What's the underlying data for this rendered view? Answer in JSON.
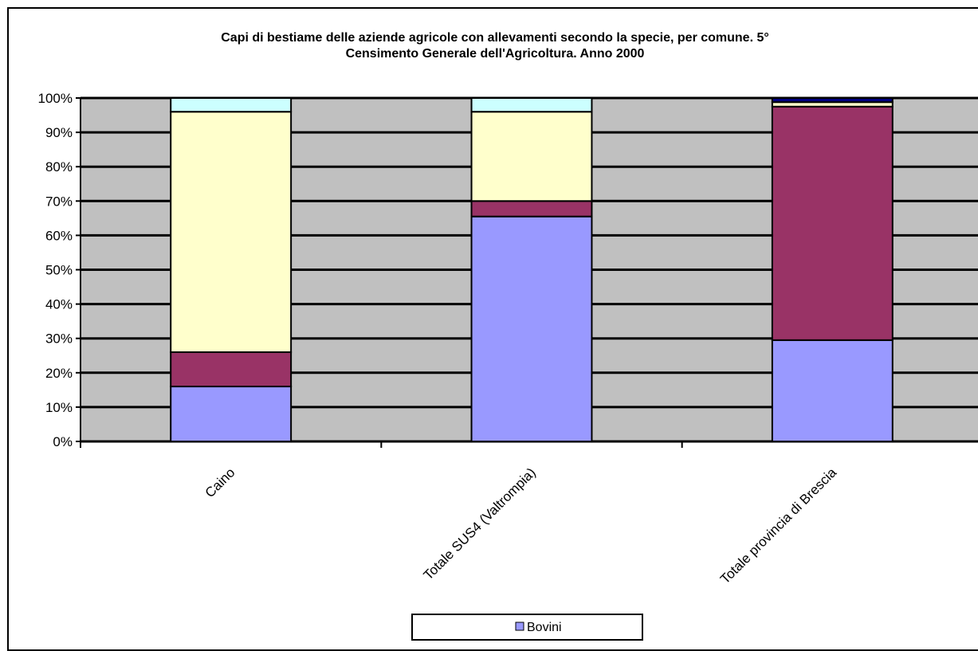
{
  "chart_data": {
    "type": "bar",
    "stacked": true,
    "percent": true,
    "title": "Capi di bestiame delle aziende agricole con allevamenti secondo la specie, per comune. 5° Censimento Generale dell'Agricoltura. Anno 2000",
    "title_lines": [
      "Capi di bestiame delle aziende agricole con allevamenti secondo la specie, per comune. 5°",
      "Censimento Generale dell'Agricoltura. Anno 2000"
    ],
    "categories": [
      "Caino",
      "Totale SUS4 (Valtrompia)",
      "Totale provincia di Brescia"
    ],
    "yticks": [
      "0%",
      "10%",
      "20%",
      "30%",
      "40%",
      "50%",
      "60%",
      "70%",
      "80%",
      "90%",
      "100%"
    ],
    "ylim": [
      0,
      100
    ],
    "grid": true,
    "plot_background": "#c0c0c0",
    "series": [
      {
        "name": "Bovini",
        "color": "#9999ff",
        "values": [
          16,
          65.5,
          29.5
        ]
      },
      {
        "color": "#993366",
        "values": [
          10,
          4.5,
          68
        ]
      },
      {
        "color": "#ffffcc",
        "values": [
          70,
          26,
          1.3
        ]
      },
      {
        "color": "#ccffff",
        "values": [
          4,
          4,
          0
        ]
      },
      {
        "color": "#000080",
        "values": [
          0,
          0,
          1.2
        ]
      }
    ],
    "legend": {
      "position": "bottom",
      "entries": [
        {
          "label": "Bovini",
          "color": "#9999ff"
        }
      ]
    }
  }
}
